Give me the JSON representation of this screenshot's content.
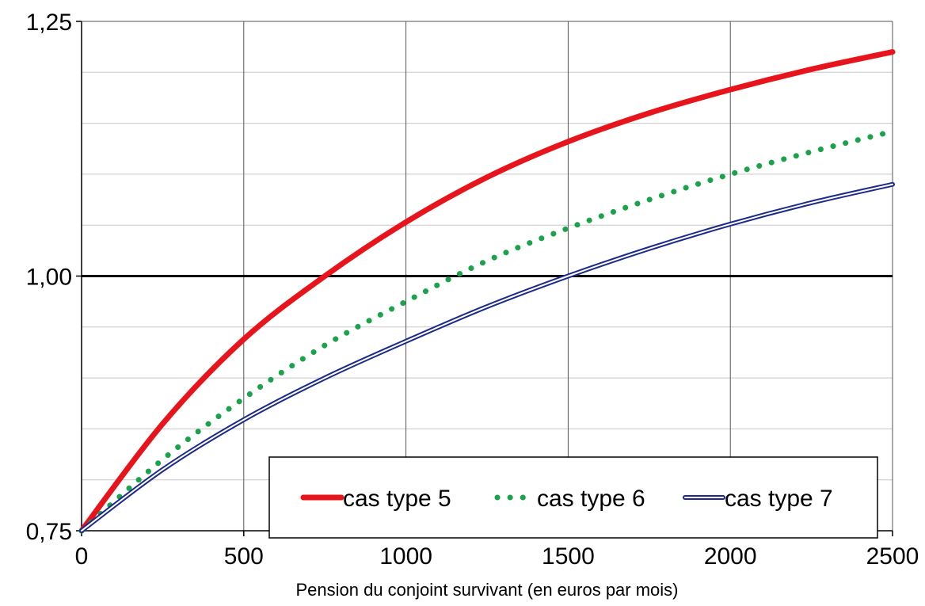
{
  "chart_data": {
    "type": "line",
    "title": "",
    "xlabel": "Pension du conjoint survivant (en euros par mois)",
    "ylabel": "",
    "xlim": [
      0,
      2500
    ],
    "ylim": [
      0.75,
      1.25
    ],
    "x_ticks": [
      0,
      500,
      1000,
      1500,
      2000,
      2500
    ],
    "x_tick_labels": [
      "0",
      "500",
      "1000",
      "1500",
      "2000",
      "2500"
    ],
    "y_ticks": [
      0.75,
      1.0,
      1.25
    ],
    "y_tick_labels": [
      "0,75",
      "1,00",
      "1,25"
    ],
    "reference_line_y": 1.0,
    "grid": true,
    "legend_position": "bottom-right",
    "x": [
      0,
      250,
      500,
      750,
      1000,
      1250,
      1500,
      1750,
      2000,
      2250,
      2500
    ],
    "series": [
      {
        "name": "cas type 5",
        "style": "solid-thick",
        "color": "#e8141c",
        "values": [
          0.75,
          0.855,
          0.938,
          1.0,
          1.053,
          1.097,
          1.132,
          1.16,
          1.183,
          1.203,
          1.22
        ]
      },
      {
        "name": "cas type 6",
        "style": "dotted",
        "color": "#1aa34a",
        "values": [
          0.75,
          0.82,
          0.88,
          0.932,
          0.975,
          1.015,
          1.047,
          1.075,
          1.1,
          1.122,
          1.142
        ]
      },
      {
        "name": "cas type 7",
        "style": "double",
        "color": "#1c2a8c",
        "values": [
          0.75,
          0.81,
          0.859,
          0.9,
          0.936,
          0.97,
          1.0,
          1.027,
          1.051,
          1.072,
          1.09
        ]
      }
    ]
  }
}
